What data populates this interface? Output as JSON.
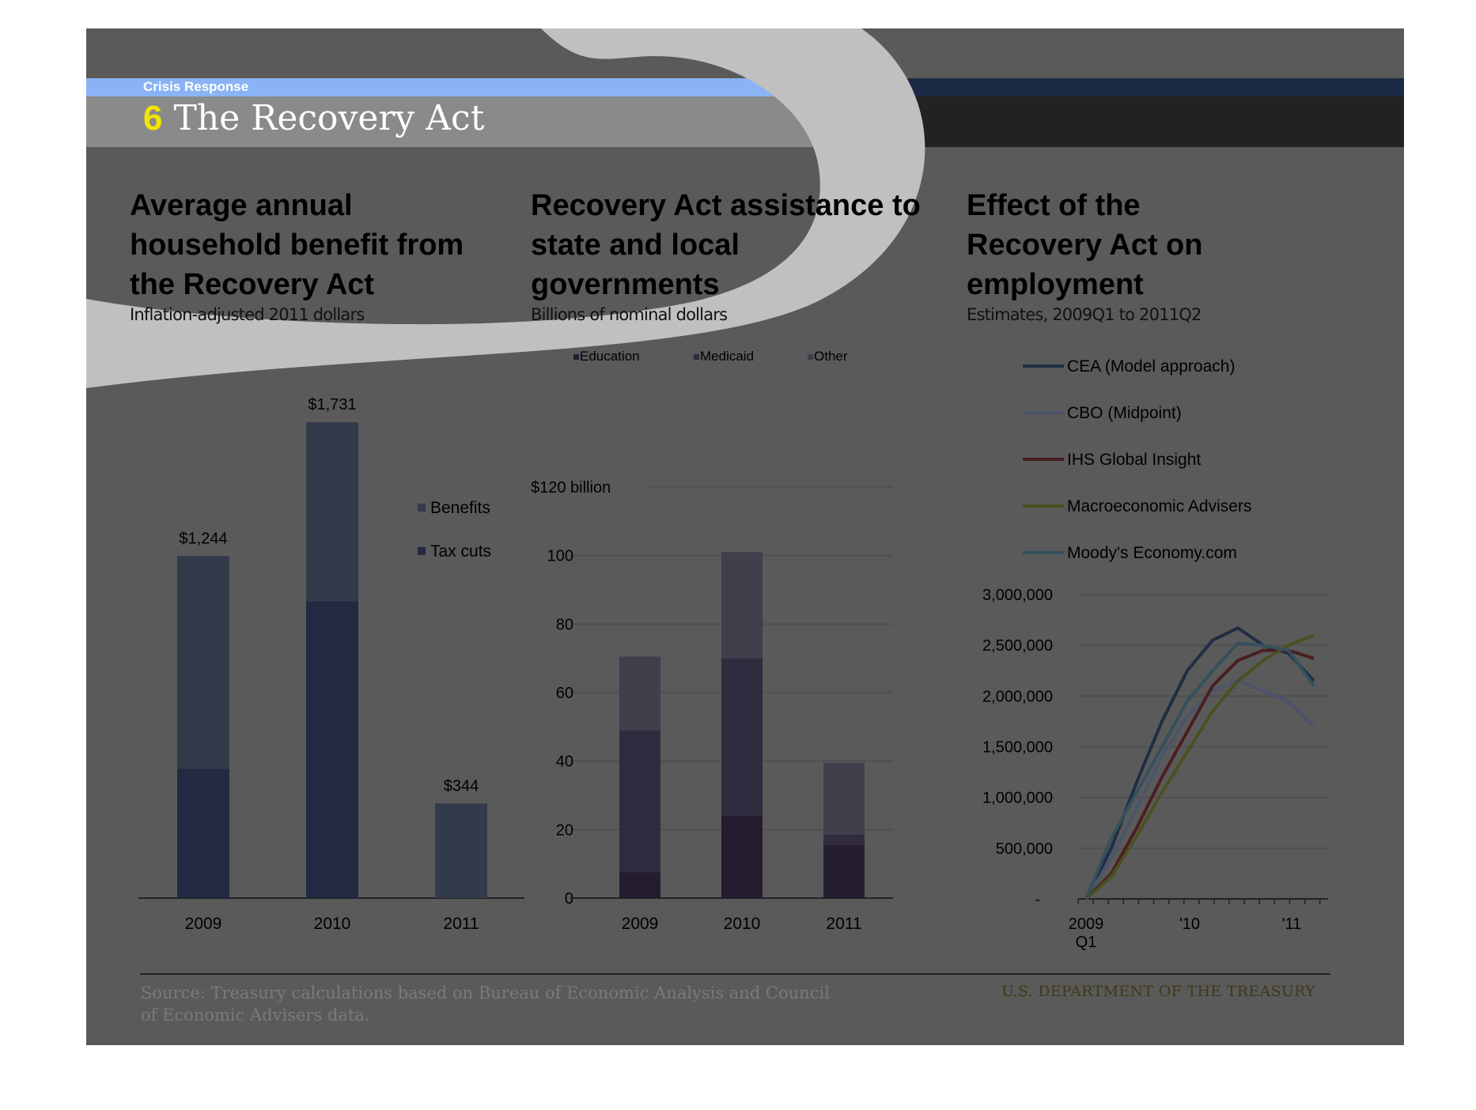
{
  "header": {
    "section_label": "Crisis Response",
    "slide_number": "6",
    "slide_title": "The Recovery Act"
  },
  "panels": [
    {
      "title": "Average annual household benefit from the Recovery Act",
      "subtitle": "Inflation-adjusted 2011 dollars"
    },
    {
      "title": "Recovery Act assistance to state and local governments",
      "subtitle": "Billions of nominal dollars"
    },
    {
      "title": "Effect of the Recovery Act on employment",
      "subtitle": "Estimates, 2009Q1 to 2011Q2"
    }
  ],
  "footer": {
    "source": "Source: Treasury calculations based on Bureau of Economic Analysis and Council of Economic Advisers data.",
    "org": "U.S. DEPARTMENT OF THE TREASURY"
  },
  "colors": {
    "background": "#5a5a5a",
    "header_bar": "#8a8a8a",
    "accent_stripe": "#8ab3f5",
    "number": "#f3e500"
  },
  "chart_data": [
    {
      "type": "bar",
      "stacked": true,
      "categories": [
        "2009",
        "2010",
        "2011"
      ],
      "series": [
        {
          "name": "Tax cuts",
          "color": "#222a42",
          "values": [
            470,
            1080,
            0
          ]
        },
        {
          "name": "Benefits",
          "color": "#333a4a",
          "values": [
            774,
            651,
            344
          ]
        }
      ],
      "data_labels": [
        "$1,244",
        "$1,731",
        "$344"
      ],
      "ylim": [
        0,
        1800
      ],
      "grid": false,
      "legend_position": "right"
    },
    {
      "type": "bar",
      "stacked": true,
      "categories": [
        "2009",
        "2010",
        "2011"
      ],
      "series": [
        {
          "name": "Education",
          "color": "#231d2f",
          "values": [
            7.5,
            24,
            15.5
          ]
        },
        {
          "name": "Medicaid",
          "color": "#302b3e",
          "values": [
            41.5,
            46,
            3
          ]
        },
        {
          "name": "Other",
          "color": "#423e4c",
          "values": [
            21.5,
            31,
            21
          ]
        }
      ],
      "y_ticks": [
        "0",
        "20",
        "40",
        "60",
        "80",
        "100",
        "$120 billion"
      ],
      "ylim": [
        0,
        120
      ],
      "grid": true,
      "legend_position": "top"
    },
    {
      "type": "line",
      "x_tick_labels": [
        "2009",
        "Q1",
        "'10",
        "'11"
      ],
      "x": [
        "2009Q1",
        "2009Q2",
        "2009Q3",
        "2009Q4",
        "2010Q1",
        "2010Q2",
        "2010Q3",
        "2010Q4",
        "2011Q1",
        "2011Q2"
      ],
      "y_ticks": [
        "-",
        "500,000",
        "1,000,000",
        "1,500,000",
        "2,000,000",
        "2,500,000",
        "3,000,000"
      ],
      "ylim": [
        0,
        3000000
      ],
      "series": [
        {
          "name": "CEA (Model approach)",
          "color": "#1f2d45",
          "values": [
            0,
            500000,
            1150000,
            1750000,
            2250000,
            2550000,
            2670000,
            2500000,
            2420000,
            2150000
          ]
        },
        {
          "name": "CBO (Midpoint)",
          "color": "#4c546a",
          "values": [
            0,
            400000,
            900000,
            1400000,
            1800000,
            2050000,
            2150000,
            2050000,
            1950000,
            1700000
          ]
        },
        {
          "name": "IHS Global Insight",
          "color": "#4a1e22",
          "values": [
            0,
            250000,
            700000,
            1200000,
            1650000,
            2100000,
            2350000,
            2450000,
            2450000,
            2370000
          ]
        },
        {
          "name": "Macroeconomic Advisers",
          "color": "#4a5020",
          "values": [
            0,
            220000,
            620000,
            1050000,
            1450000,
            1850000,
            2150000,
            2350000,
            2500000,
            2600000
          ]
        },
        {
          "name": "Moody's Economy.com",
          "color": "#34505c",
          "values": [
            0,
            600000,
            1050000,
            1500000,
            1950000,
            2250000,
            2520000,
            2500000,
            2450000,
            2100000
          ]
        }
      ],
      "grid": true,
      "legend_position": "top"
    }
  ]
}
